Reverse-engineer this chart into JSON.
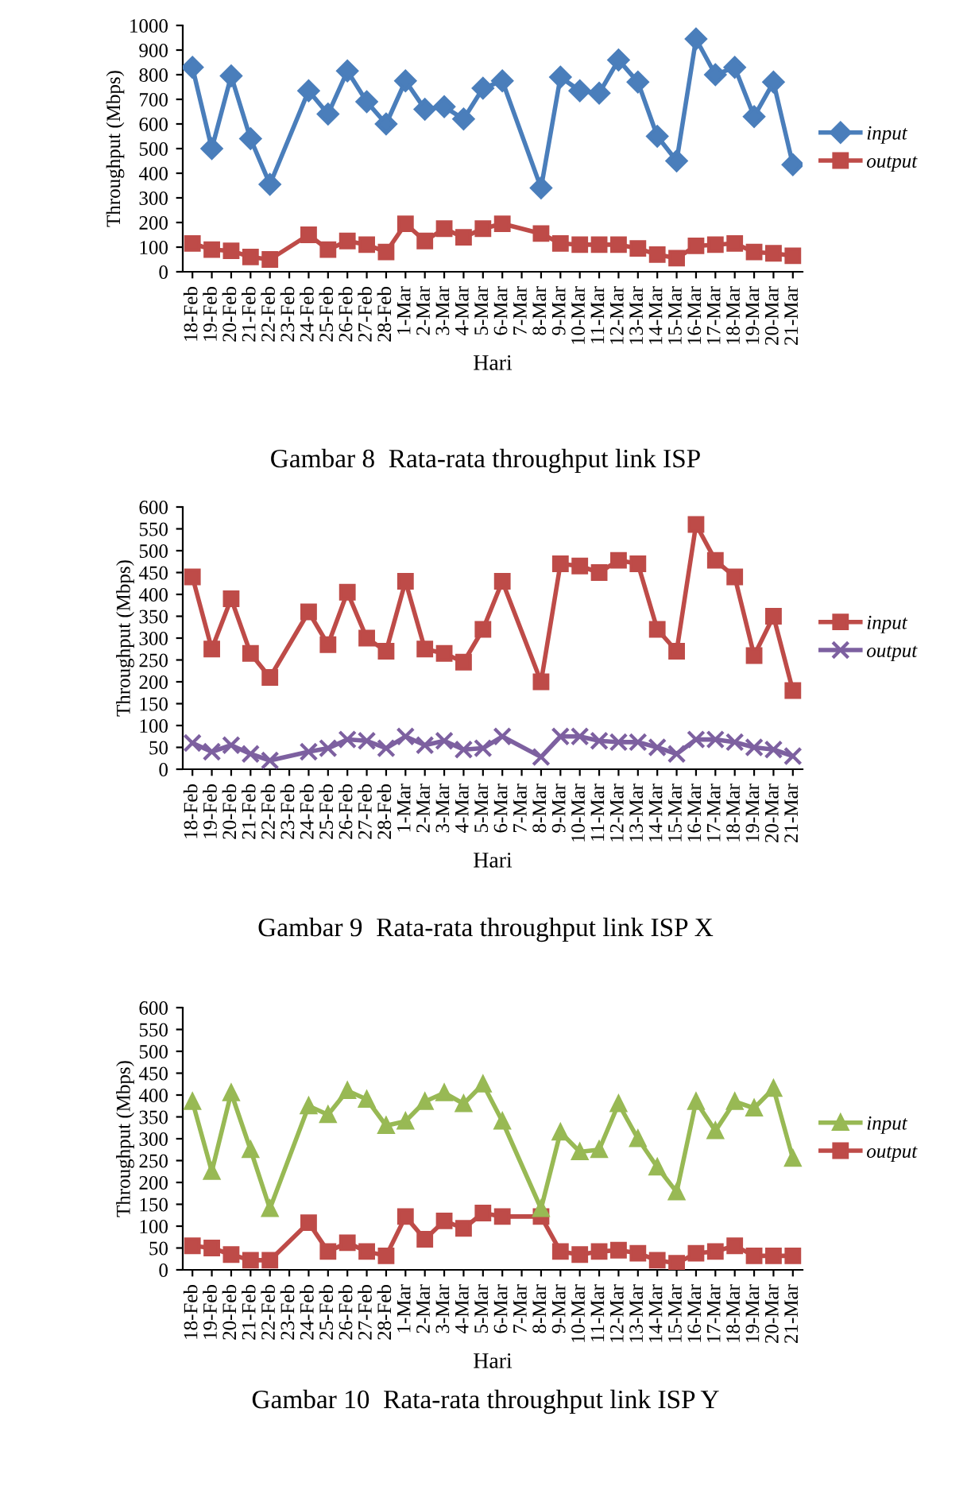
{
  "chart_data": [
    {
      "type": "line",
      "title": "Gambar 8  Rata-rata throughput link ISP",
      "xlabel": "Hari",
      "ylabel": "Throughput (Mbps)",
      "categories": [
        "18-Feb",
        "19-Feb",
        "20-Feb",
        "21-Feb",
        "22-Feb",
        "23-Feb",
        "24-Feb",
        "25-Feb",
        "26-Feb",
        "27-Feb",
        "28-Feb",
        "1-Mar",
        "2-Mar",
        "3-Mar",
        "4-Mar",
        "5-Mar",
        "6-Mar",
        "7-Mar",
        "8-Mar",
        "9-Mar",
        "10-Mar",
        "11-Mar",
        "12-Mar",
        "13-Mar",
        "14-Mar",
        "15-Mar",
        "16-Mar",
        "17-Mar",
        "18-Mar",
        "19-Mar",
        "20-Mar",
        "21-Mar"
      ],
      "series": [
        {
          "name": "input",
          "color": "#4a7ebb",
          "marker": "diamond",
          "values": [
            830,
            500,
            795,
            540,
            355,
            null,
            735,
            640,
            815,
            690,
            600,
            775,
            660,
            670,
            620,
            745,
            775,
            null,
            340,
            790,
            735,
            725,
            860,
            770,
            550,
            450,
            945,
            800,
            830,
            630,
            770,
            435
          ]
        },
        {
          "name": "output",
          "color": "#be4b48",
          "marker": "square",
          "values": [
            115,
            90,
            85,
            60,
            50,
            null,
            150,
            90,
            125,
            110,
            80,
            195,
            125,
            175,
            140,
            175,
            195,
            null,
            155,
            115,
            110,
            110,
            110,
            95,
            70,
            55,
            105,
            110,
            115,
            80,
            75,
            65
          ]
        }
      ],
      "ylim": [
        0,
        1000
      ],
      "yticks": [
        0,
        100,
        200,
        300,
        400,
        500,
        600,
        700,
        800,
        900,
        1000
      ],
      "grid": false,
      "legend": "right"
    },
    {
      "type": "line",
      "title": "Gambar 9  Rata-rata throughput link ISP X",
      "xlabel": "Hari",
      "ylabel": "Throughput (Mbps)",
      "categories": [
        "18-Feb",
        "19-Feb",
        "20-Feb",
        "21-Feb",
        "22-Feb",
        "23-Feb",
        "24-Feb",
        "25-Feb",
        "26-Feb",
        "27-Feb",
        "28-Feb",
        "1-Mar",
        "2-Mar",
        "3-Mar",
        "4-Mar",
        "5-Mar",
        "6-Mar",
        "7-Mar",
        "8-Mar",
        "9-Mar",
        "10-Mar",
        "11-Mar",
        "12-Mar",
        "13-Mar",
        "14-Mar",
        "15-Mar",
        "16-Mar",
        "17-Mar",
        "18-Mar",
        "19-Mar",
        "20-Mar",
        "21-Mar"
      ],
      "series": [
        {
          "name": "input",
          "color": "#be4b48",
          "marker": "square",
          "values": [
            440,
            275,
            390,
            265,
            210,
            null,
            360,
            285,
            405,
            300,
            270,
            430,
            275,
            265,
            245,
            320,
            430,
            null,
            200,
            470,
            465,
            450,
            478,
            470,
            320,
            270,
            560,
            478,
            440,
            260,
            350,
            180
          ]
        },
        {
          "name": "output",
          "color": "#7d60a0",
          "marker": "cross",
          "values": [
            60,
            40,
            55,
            35,
            20,
            null,
            40,
            48,
            68,
            65,
            48,
            75,
            55,
            65,
            45,
            48,
            75,
            null,
            28,
            75,
            75,
            65,
            62,
            62,
            50,
            35,
            68,
            68,
            62,
            50,
            45,
            30
          ]
        }
      ],
      "ylim": [
        0,
        600
      ],
      "yticks": [
        0,
        50,
        100,
        150,
        200,
        250,
        300,
        350,
        400,
        450,
        500,
        550,
        600
      ],
      "grid": false,
      "legend": "right"
    },
    {
      "type": "line",
      "title": "Gambar 10  Rata-rata throughput link ISP Y",
      "xlabel": "Hari",
      "ylabel": "Throughput (Mbps)",
      "categories": [
        "18-Feb",
        "19-Feb",
        "20-Feb",
        "21-Feb",
        "22-Feb",
        "23-Feb",
        "24-Feb",
        "25-Feb",
        "26-Feb",
        "27-Feb",
        "28-Feb",
        "1-Mar",
        "2-Mar",
        "3-Mar",
        "4-Mar",
        "5-Mar",
        "6-Mar",
        "7-Mar",
        "8-Mar",
        "9-Mar",
        "10-Mar",
        "11-Mar",
        "12-Mar",
        "13-Mar",
        "14-Mar",
        "15-Mar",
        "16-Mar",
        "17-Mar",
        "18-Mar",
        "19-Mar",
        "20-Mar",
        "21-Mar"
      ],
      "series": [
        {
          "name": "input",
          "color": "#98b954",
          "marker": "triangle",
          "values": [
            385,
            225,
            405,
            275,
            140,
            null,
            375,
            355,
            410,
            390,
            330,
            340,
            385,
            405,
            380,
            425,
            340,
            null,
            140,
            315,
            270,
            275,
            380,
            300,
            235,
            178,
            385,
            318,
            385,
            370,
            415,
            255
          ]
        },
        {
          "name": "output",
          "color": "#be4b48",
          "marker": "square",
          "values": [
            55,
            50,
            35,
            22,
            22,
            null,
            108,
            42,
            62,
            42,
            32,
            122,
            70,
            112,
            95,
            130,
            122,
            null,
            122,
            42,
            35,
            42,
            45,
            38,
            22,
            15,
            38,
            42,
            55,
            32,
            32,
            32
          ]
        }
      ],
      "ylim": [
        0,
        600
      ],
      "yticks": [
        0,
        50,
        100,
        150,
        200,
        250,
        300,
        350,
        400,
        450,
        500,
        550,
        600
      ],
      "grid": false,
      "legend": "right"
    }
  ]
}
